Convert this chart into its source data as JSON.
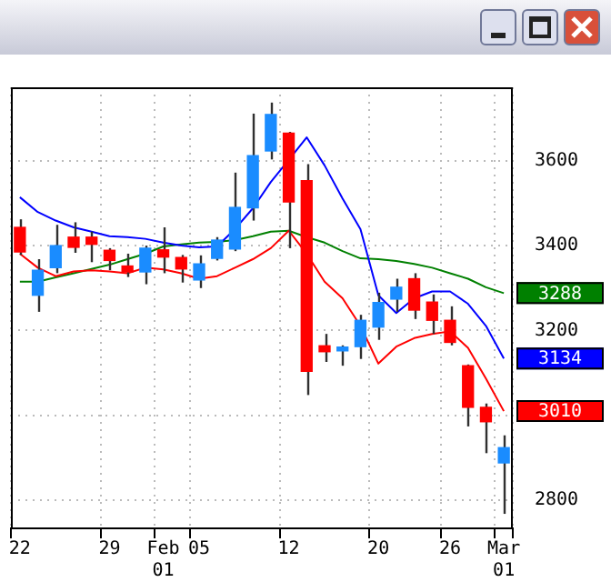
{
  "chart_data": {
    "type": "candlestick",
    "categories": [
      "22",
      null,
      null,
      null,
      null,
      "29",
      null,
      null,
      "Feb\n01",
      null,
      "05",
      null,
      null,
      null,
      null,
      "12",
      null,
      null,
      null,
      null,
      "20",
      null,
      null,
      null,
      "26",
      null,
      null,
      "Mar\n01"
    ],
    "ohlc": [
      [
        3443,
        3462,
        3378,
        3385
      ],
      [
        3283,
        3368,
        3244,
        3342
      ],
      [
        3348,
        3449,
        3335,
        3400
      ],
      [
        3420,
        3455,
        3383,
        3396
      ],
      [
        3420,
        3433,
        3361,
        3403
      ],
      [
        3389,
        3394,
        3342,
        3365
      ],
      [
        3352,
        3381,
        3326,
        3338
      ],
      [
        3338,
        3400,
        3309,
        3394
      ],
      [
        3390,
        3443,
        3335,
        3373
      ],
      [
        3372,
        3378,
        3313,
        3345
      ],
      [
        3319,
        3377,
        3300,
        3357
      ],
      [
        3370,
        3420,
        3365,
        3413
      ],
      [
        3392,
        3572,
        3387,
        3490
      ],
      [
        3489,
        3711,
        3459,
        3612
      ],
      [
        3623,
        3737,
        3603,
        3709
      ],
      [
        3665,
        3668,
        3394,
        3503
      ],
      [
        3553,
        3592,
        3048,
        3104
      ],
      [
        3164,
        3192,
        3126,
        3150
      ],
      [
        3152,
        3165,
        3117,
        3161
      ],
      [
        3162,
        3237,
        3133,
        3224
      ],
      [
        3208,
        3289,
        3178,
        3266
      ],
      [
        3274,
        3322,
        3244,
        3302
      ],
      [
        3322,
        3335,
        3227,
        3248
      ],
      [
        3267,
        3285,
        3192,
        3224
      ],
      [
        3224,
        3257,
        3165,
        3172
      ],
      [
        3117,
        3120,
        2974,
        3019
      ],
      [
        3019,
        3028,
        2911,
        2985
      ],
      [
        2888,
        2953,
        2768,
        2924
      ]
    ],
    "colors": [
      "#ff0000",
      "#1a8cff",
      "#1a8cff",
      "#ff0000",
      "#ff0000",
      "#ff0000",
      "#ff0000",
      "#1a8cff",
      "#ff0000",
      "#ff0000",
      "#1a8cff",
      "#1a8cff",
      "#1a8cff",
      "#1a8cff",
      "#1a8cff",
      "#ff0000",
      "#ff0000",
      "#ff0000",
      "#1a8cff",
      "#1a8cff",
      "#1a8cff",
      "#1a8cff",
      "#ff0000",
      "#ff0000",
      "#ff0000",
      "#ff0000",
      "#ff0000",
      "#1a8cff"
    ],
    "series": [
      {
        "type": "line",
        "color": "#0000ff",
        "values": [
          3514,
          3479,
          3459,
          3443,
          3433,
          3422,
          3420,
          3416,
          3407,
          3400,
          3396,
          3398,
          3439,
          3488,
          3550,
          3602,
          3655,
          3589,
          3511,
          3439,
          3283,
          3241,
          3276,
          3292,
          3292,
          3263,
          3211,
          3134
        ],
        "value_labels": [
          null,
          null,
          null,
          null,
          null,
          null,
          null,
          null,
          null,
          null,
          null,
          null,
          null,
          null,
          null,
          null,
          null,
          null,
          null,
          null,
          null,
          null,
          null,
          null,
          null,
          null,
          null,
          "3134"
        ]
      },
      {
        "type": "line",
        "color": "#ff0000",
        "values": [
          3381,
          3348,
          3328,
          3339,
          3342,
          3339,
          3335,
          3348,
          3344,
          3335,
          3322,
          3328,
          3348,
          3368,
          3394,
          3435,
          3381,
          3315,
          3276,
          3211,
          3122,
          3162,
          3182,
          3192,
          3198,
          3159,
          3087,
          3010
        ],
        "value_labels": [
          null,
          null,
          null,
          null,
          null,
          null,
          null,
          null,
          null,
          null,
          null,
          null,
          null,
          null,
          null,
          null,
          null,
          null,
          null,
          null,
          null,
          null,
          null,
          null,
          null,
          null,
          null,
          "3010"
        ]
      },
      {
        "type": "line",
        "color": "#008000",
        "values": [
          3315,
          3315,
          3325,
          3335,
          3345,
          3355,
          3368,
          3381,
          3398,
          3403,
          3407,
          3409,
          3413,
          3422,
          3433,
          3435,
          3420,
          3407,
          3387,
          3370,
          3368,
          3364,
          3357,
          3348,
          3335,
          3322,
          3302,
          3288
        ],
        "value_labels": [
          null,
          null,
          null,
          null,
          null,
          null,
          null,
          null,
          null,
          null,
          null,
          null,
          null,
          null,
          null,
          null,
          null,
          null,
          null,
          null,
          null,
          null,
          null,
          null,
          null,
          null,
          null,
          "3288"
        ]
      }
    ],
    "ylim": [
      2736,
      3773
    ],
    "yticks": [
      2800,
      {
        "value": 3000,
        "label": null
      },
      3200,
      3400,
      3600
    ],
    "grid": true,
    "legend": false
  }
}
